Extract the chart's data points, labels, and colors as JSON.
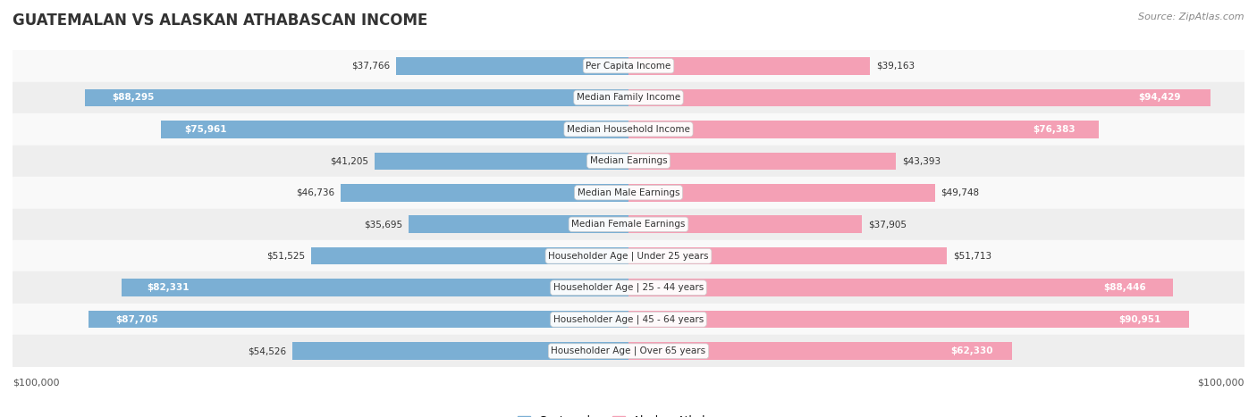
{
  "title": "GUATEMALAN VS ALASKAN ATHABASCAN INCOME",
  "source": "Source: ZipAtlas.com",
  "categories": [
    "Per Capita Income",
    "Median Family Income",
    "Median Household Income",
    "Median Earnings",
    "Median Male Earnings",
    "Median Female Earnings",
    "Householder Age | Under 25 years",
    "Householder Age | 25 - 44 years",
    "Householder Age | 45 - 64 years",
    "Householder Age | Over 65 years"
  ],
  "guatemalan_values": [
    37766,
    88295,
    75961,
    41205,
    46736,
    35695,
    51525,
    82331,
    87705,
    54526
  ],
  "alaskan_values": [
    39163,
    94429,
    76383,
    43393,
    49748,
    37905,
    51713,
    88446,
    90951,
    62330
  ],
  "guatemalan_labels": [
    "$37,766",
    "$88,295",
    "$75,961",
    "$41,205",
    "$46,736",
    "$35,695",
    "$51,525",
    "$82,331",
    "$87,705",
    "$54,526"
  ],
  "alaskan_labels": [
    "$39,163",
    "$94,429",
    "$76,383",
    "$43,393",
    "$49,748",
    "$37,905",
    "$51,713",
    "$88,446",
    "$90,951",
    "$62,330"
  ],
  "max_value": 100000,
  "guatemalan_color": "#7bafd4",
  "guatemalan_color_dark": "#5b9dc8",
  "alaskan_color": "#f4a0b5",
  "alaskan_color_dark": "#f07090",
  "bar_height": 0.55,
  "bg_color": "#f5f5f5",
  "row_bg_light": "#f9f9f9",
  "row_bg_dark": "#eeeeee"
}
